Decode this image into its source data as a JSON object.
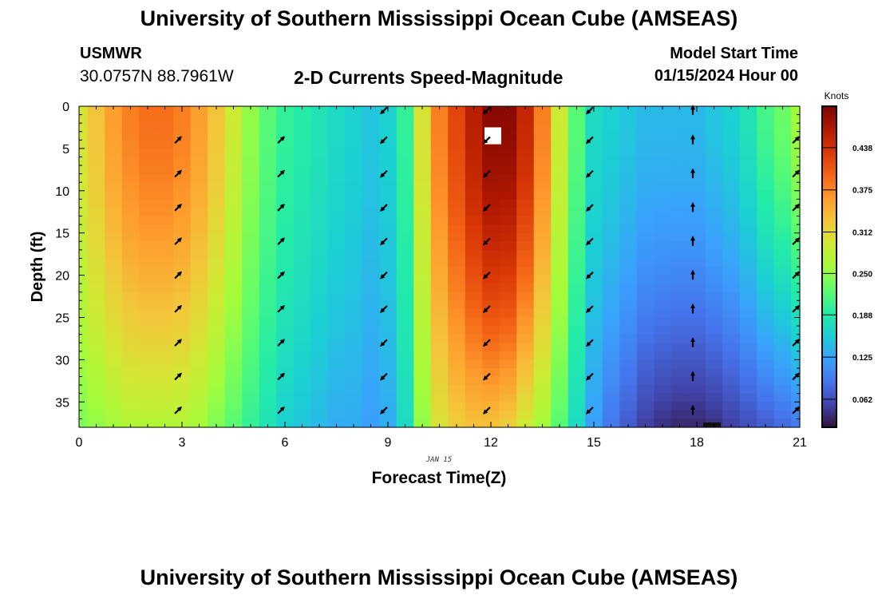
{
  "header": {
    "title": "University of Southern Mississippi Ocean Cube (AMSEAS)",
    "station_id": "USMWR",
    "coordinates": "30.0757N  88.7961W",
    "start_label": "Model Start Time",
    "start_value": "01/15/2024 Hour 00"
  },
  "footer": {
    "title": "University of Southern Mississippi Ocean Cube (AMSEAS)"
  },
  "colors": {
    "colormap": [
      "#30123b",
      "#4145ab",
      "#4675ed",
      "#39a2fc",
      "#1bcfd4",
      "#24eca6",
      "#61fc6c",
      "#a4fc3b",
      "#d1e834",
      "#f3c63a",
      "#fe9b2d",
      "#f36315",
      "#d93806",
      "#b11901",
      "#7a0403"
    ],
    "arrow": "#000000",
    "missing": "#ffffff"
  },
  "chart_data": {
    "type": "heatmap",
    "title": "2-D Currents Speed-Magnitude",
    "xlabel": "Forecast Time(Z)",
    "ylabel": "Depth (ft)",
    "x_sub_label": "JAN 15",
    "x_range": [
      0,
      21
    ],
    "y_range": [
      38,
      0
    ],
    "x_ticks": [
      0,
      3,
      6,
      9,
      12,
      15,
      18,
      21
    ],
    "y_ticks": [
      0,
      5,
      10,
      15,
      20,
      25,
      30,
      35
    ],
    "colorbar": {
      "label": "Knots",
      "range": [
        0.02,
        0.5
      ],
      "ticks": [
        "0.062",
        "0.125",
        "0.188",
        "0.250",
        "0.312",
        "0.375",
        "0.438"
      ],
      "tick_values": [
        0.062,
        0.125,
        0.188,
        0.25,
        0.312,
        0.375,
        0.438
      ]
    },
    "time_columns": [
      0,
      0.5,
      1,
      1.5,
      2,
      2.5,
      3,
      3.5,
      4,
      4.5,
      5,
      5.5,
      6,
      6.5,
      7,
      7.5,
      8,
      8.5,
      9,
      9.5,
      10,
      10.5,
      11,
      11.5,
      12,
      12.5,
      13,
      13.5,
      14,
      14.5,
      15,
      15.5,
      16,
      16.5,
      17,
      17.5,
      18,
      18.5,
      19,
      19.5,
      20,
      20.5,
      21
    ],
    "speed_surface": [
      0.3,
      0.33,
      0.36,
      0.38,
      0.39,
      0.39,
      0.38,
      0.36,
      0.33,
      0.29,
      0.25,
      0.22,
      0.2,
      0.19,
      0.18,
      0.17,
      0.16,
      0.15,
      0.16,
      0.2,
      0.3,
      0.38,
      0.42,
      0.46,
      0.49,
      0.49,
      0.45,
      0.38,
      0.29,
      0.22,
      0.17,
      0.16,
      0.15,
      0.14,
      0.14,
      0.14,
      0.14,
      0.15,
      0.16,
      0.18,
      0.21,
      0.23,
      0.26
    ],
    "speed_bottom": [
      0.24,
      0.25,
      0.26,
      0.27,
      0.27,
      0.27,
      0.27,
      0.26,
      0.24,
      0.22,
      0.2,
      0.18,
      0.16,
      0.15,
      0.14,
      0.13,
      0.13,
      0.12,
      0.13,
      0.17,
      0.25,
      0.3,
      0.32,
      0.33,
      0.33,
      0.32,
      0.29,
      0.26,
      0.22,
      0.17,
      0.12,
      0.09,
      0.07,
      0.05,
      0.04,
      0.035,
      0.035,
      0.04,
      0.05,
      0.06,
      0.07,
      0.08,
      0.09
    ],
    "arrow_times": [
      3,
      6,
      9,
      12,
      15,
      18,
      21
    ],
    "arrow_depths": [
      4,
      8,
      12,
      16,
      20,
      24,
      28,
      32,
      36
    ],
    "arrow_directions_deg": [
      315,
      315,
      135,
      135,
      135,
      270,
      315
    ],
    "arrow_surface_directions_deg": [
      null,
      null,
      135,
      135,
      135,
      270,
      null
    ],
    "missing_cell": {
      "time": 12,
      "depth_from": 2.5,
      "depth_to": 4.5
    }
  }
}
